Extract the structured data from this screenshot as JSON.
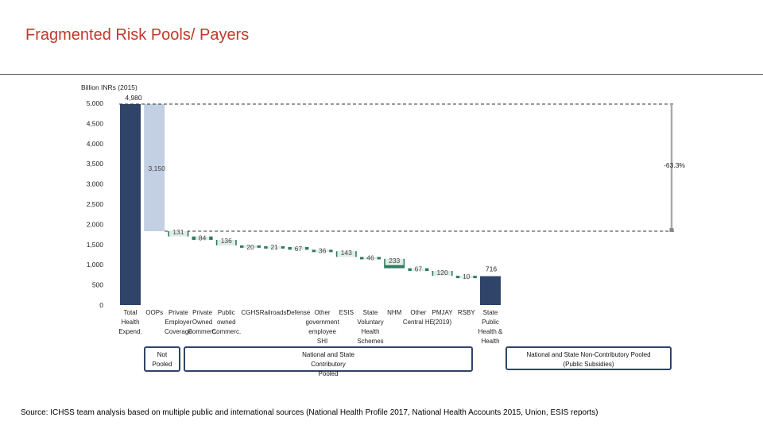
{
  "page": {
    "title": "Fragmented Risk Pools/ Payers"
  },
  "chart_data": {
    "type": "bar",
    "variant": "waterfall",
    "ylabel": "Billion INRs (2015)",
    "ylim": [
      0,
      5000
    ],
    "yticks": [
      "0",
      "500",
      "1,000",
      "1,500",
      "2,000",
      "2,500",
      "3,000",
      "3,500",
      "4,000",
      "4,500",
      "5,000"
    ],
    "categories": [
      "Total Health Expend.",
      "OOPs",
      "Private Employer Coverage",
      "Private Owned Commerc.",
      "Public owned Commerc.",
      "CGHS",
      "Railroads*",
      "Defense",
      "Other government employee SHI",
      "ESIS",
      "State Voluntary Health Schemes",
      "NHM",
      "Other Central HE",
      "PMJAY (2019)",
      "RSBY",
      "State Public Health & Health"
    ],
    "tick_labels": [
      [
        "Total",
        "Health",
        "Expend."
      ],
      [
        "OOPs"
      ],
      [
        "Private",
        "Employer",
        "Coverage"
      ],
      [
        "Private",
        "Owned",
        "Commerc."
      ],
      [
        "Public",
        "owned",
        "Commerc."
      ],
      [
        "CGHS"
      ],
      [
        "Railroads*"
      ],
      [
        "Defense"
      ],
      [
        "Other",
        "government",
        "employee",
        "SHI"
      ],
      [
        "ESIS"
      ],
      [
        "State",
        "Voluntary",
        "Health",
        "Schemes"
      ],
      [
        "NHM"
      ],
      [
        "Other",
        "Central HE"
      ],
      [
        "PMJAY",
        "(2019)"
      ],
      [
        "RSBY"
      ],
      [
        "State",
        "Public",
        "Health &",
        "Health"
      ]
    ],
    "values": [
      4980,
      3150,
      131,
      84,
      136,
      20,
      21,
      67,
      36,
      143,
      46,
      233,
      67,
      120,
      10,
      716
    ],
    "labels": [
      "4,980",
      "3,150",
      "131",
      "84",
      "136",
      "20",
      "21",
      "67",
      "36",
      "143",
      "46",
      "233",
      "67",
      "120",
      "10",
      "716"
    ],
    "kinds": [
      "total",
      "drop",
      "drop",
      "drop",
      "drop",
      "drop",
      "drop",
      "drop",
      "drop",
      "drop",
      "drop",
      "drop",
      "drop",
      "drop",
      "drop",
      "total"
    ],
    "annotation": "-63.3%",
    "groups": [
      {
        "lines": [
          "Not",
          "Pooled"
        ]
      },
      {
        "lines": [
          "National and State",
          "Contributory",
          "Pooled"
        ]
      },
      {
        "lines": [
          "National and State Non-Contributory Pooled",
          "(Public Subsidies)"
        ]
      }
    ],
    "colors": {
      "total": "#2f4468",
      "oops": "#c3cfe2",
      "drop": "#2e7d5e",
      "group_border": "#2f4468"
    }
  },
  "source": "Source: ICHSS team analysis based on multiple public and international sources (National Health Profile 2017, National Health Accounts 2015, Union, ESIS reports)"
}
